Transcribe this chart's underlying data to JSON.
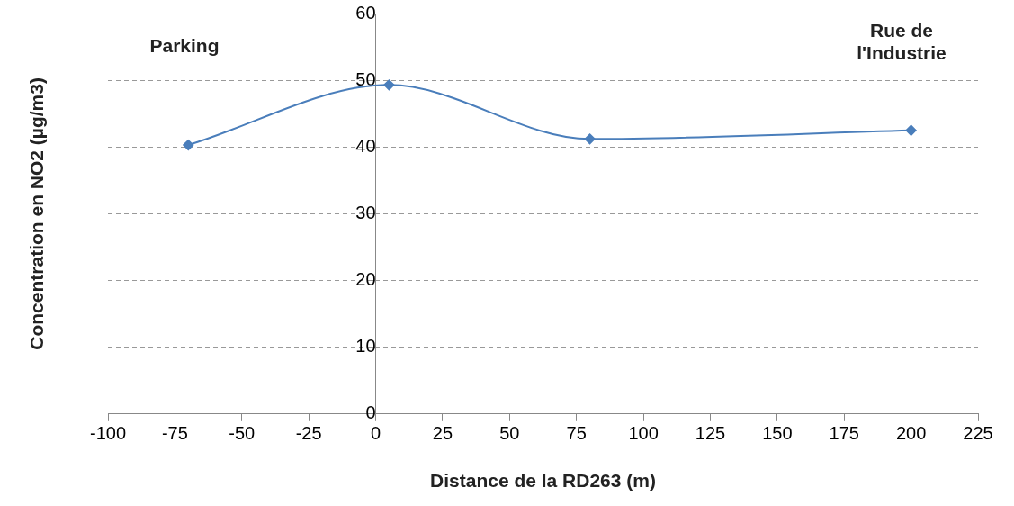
{
  "chart_data": {
    "type": "line",
    "xlabel": "Distance de la RD263 (m)",
    "ylabel": "Concentration en NO2 (µg/m3)",
    "x": [
      -70,
      5,
      80,
      200
    ],
    "series": [
      {
        "color": "#4a7ebb",
        "values": [
          40.3,
          49.3,
          41.2,
          42.5
        ]
      }
    ],
    "xlim": [
      -100,
      225
    ],
    "xticks": [
      -100,
      -75,
      -50,
      -25,
      0,
      25,
      50,
      75,
      100,
      125,
      150,
      175,
      200,
      225
    ],
    "ylim": [
      0,
      60
    ],
    "yticks": [
      0,
      10,
      20,
      30,
      40,
      50,
      60
    ],
    "grid": "y",
    "legend": false,
    "marker": "diamond",
    "line_style": "solid",
    "annotations": [
      "Parking",
      "Rue de l'Industrie"
    ]
  }
}
